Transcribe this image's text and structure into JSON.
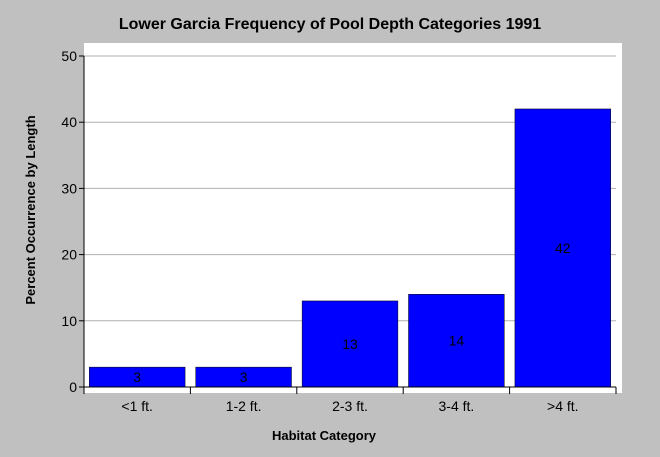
{
  "colors": {
    "background": "#c0c0c0",
    "plot_background": "#ffffff",
    "bar": "#0000ff",
    "grid": "#b0b0b0"
  },
  "chart_data": {
    "type": "bar",
    "title": "Lower Garcia Frequency of Pool Depth Categories 1991",
    "xlabel": "Habitat Category",
    "ylabel": "Percent Occurrence by Length",
    "categories": [
      "<1 ft.",
      "1-2 ft.",
      "2-3 ft.",
      "3-4 ft.",
      ">4 ft."
    ],
    "values": [
      3,
      3,
      13,
      14,
      42
    ],
    "data_labels": [
      "3",
      "3",
      "13",
      "14",
      "42"
    ],
    "ylim": [
      0,
      50
    ],
    "yticks": [
      "0",
      "10",
      "20",
      "30",
      "40",
      "50"
    ],
    "grid": true,
    "legend": "none"
  }
}
